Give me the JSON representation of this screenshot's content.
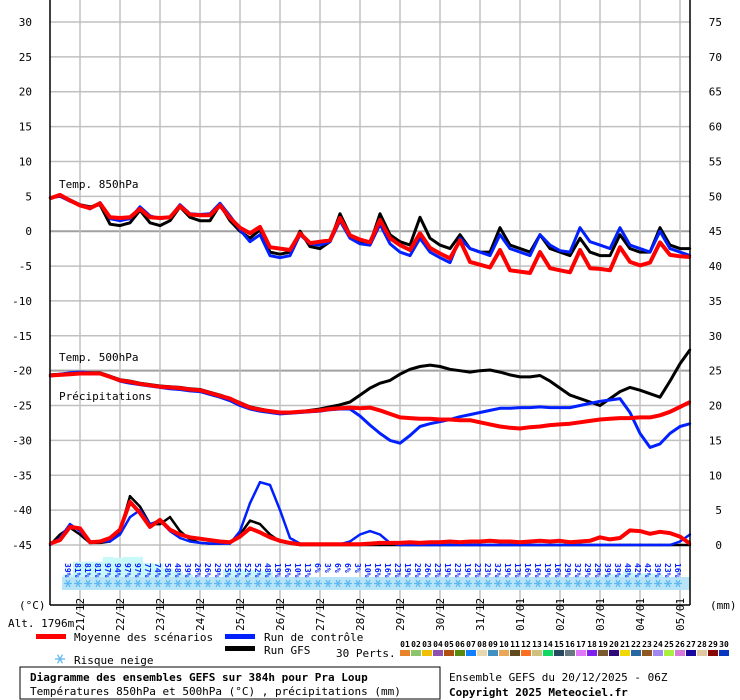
{
  "chart_data": {
    "type": "line",
    "title": "Diagramme des ensembles GEFS sur 384h pour Pra Loup",
    "subtitle": "Températures 850hPa et 500hPa (°C) , précipitations (mm)",
    "run_label": "Ensemble GEFS du 20/12/2025 - 06Z",
    "copyright": "Copyright 2025 Meteociel.fr",
    "altitude": "Alt. 1796m",
    "left_unit": "(°C)",
    "right_unit": "(mm)",
    "left_axis": {
      "range": [
        -45,
        30
      ],
      "ticks": [
        "30",
        "25",
        "20",
        "15",
        "10",
        "5",
        "0",
        "-5",
        "-10",
        "-15",
        "-20",
        "-25",
        "-30",
        "-35",
        "-40",
        "-45"
      ]
    },
    "right_axis": {
      "range": [
        0,
        75
      ],
      "ticks": [
        "75",
        "70",
        "65",
        "60",
        "55",
        "50",
        "45",
        "40",
        "35",
        "30",
        "25",
        "20",
        "15",
        "10",
        "5",
        "0"
      ]
    },
    "x_axis": {
      "start": "20/12/2025 06Z",
      "step_hours": 6,
      "length_hours": 384,
      "tick_labels": [
        "21/12",
        "22/12",
        "23/12",
        "24/12",
        "25/12",
        "26/12",
        "27/12",
        "28/12",
        "29/12",
        "30/12",
        "31/12",
        "01/01",
        "02/01",
        "03/01",
        "04/01",
        "05/01"
      ]
    },
    "grid": true,
    "panel_labels": {
      "t850": "Temp. 850hPa",
      "t500": "Temp. 500hPa",
      "precip": "Précipitations"
    },
    "colors": {
      "mean": "#ff0000",
      "control": "#0020ff",
      "gfs": "#000000",
      "grid": "#c0c0c0",
      "snow_fill": "#c8f8f8",
      "snow_text": "#0020ff",
      "snowflake": "#60b8f0"
    },
    "series": {
      "t850": {
        "mean": [
          4.7,
          5.2,
          4.4,
          3.7,
          3.3,
          4.0,
          2.0,
          1.9,
          2.0,
          3.2,
          2.0,
          1.9,
          2.0,
          3.6,
          2.4,
          2.3,
          2.3,
          3.7,
          1.9,
          0.5,
          -0.3,
          0.6,
          -2.3,
          -2.5,
          -2.7,
          -0.3,
          -1.7,
          -1.5,
          -1.3,
          1.9,
          -0.6,
          -1.2,
          -1.6,
          1.6,
          -1.0,
          -2.0,
          -2.7,
          -0.3,
          -2.4,
          -3.2,
          -3.9,
          -1.3,
          -4.4,
          -4.8,
          -5.2,
          -2.7,
          -5.6,
          -5.8,
          -6.0,
          -3.0,
          -5.3,
          -5.6,
          -5.9,
          -2.7,
          -5.3,
          -5.4,
          -5.6,
          -2.3,
          -4.4,
          -4.9,
          -4.5,
          -1.6,
          -3.4,
          -3.6,
          -3.7
        ],
        "control": [
          4.8,
          5.0,
          4.3,
          3.8,
          3.2,
          4.1,
          1.8,
          1.5,
          1.8,
          3.5,
          2.2,
          1.8,
          2.0,
          3.8,
          2.5,
          2.4,
          2.5,
          4.0,
          2.2,
          0.2,
          -1.5,
          -0.5,
          -3.5,
          -3.8,
          -3.5,
          -0.5,
          -1.8,
          -2.0,
          -1.5,
          1.5,
          -1.0,
          -1.8,
          -2.0,
          1.0,
          -1.8,
          -3.0,
          -3.5,
          -1.0,
          -3.0,
          -3.8,
          -4.5,
          -1.0,
          -2.5,
          -3.0,
          -3.5,
          -0.5,
          -2.5,
          -3.0,
          -3.5,
          -0.5,
          -2.0,
          -2.8,
          -3.0,
          0.5,
          -1.5,
          -2.0,
          -2.5,
          0.5,
          -2.0,
          -2.5,
          -3.0,
          0.0,
          -2.5,
          -3.0,
          -3.5
        ],
        "gfs": [
          4.8,
          5.0,
          4.5,
          3.8,
          3.5,
          3.8,
          1.0,
          0.8,
          1.2,
          3.0,
          1.2,
          0.8,
          1.5,
          3.5,
          2.0,
          1.5,
          1.5,
          3.8,
          1.5,
          0.0,
          -1.0,
          0.2,
          -3.0,
          -3.3,
          -3.0,
          0.0,
          -2.2,
          -2.5,
          -1.5,
          2.5,
          -0.5,
          -1.5,
          -1.8,
          2.5,
          -0.5,
          -1.5,
          -2.0,
          2.0,
          -1.0,
          -2.0,
          -2.5,
          -0.5,
          -2.5,
          -3.0,
          -3.0,
          0.5,
          -2.0,
          -2.5,
          -3.0,
          -0.5,
          -2.5,
          -3.0,
          -3.5,
          -1.0,
          -3.0,
          -3.5,
          -3.5,
          -0.5,
          -2.5,
          -3.0,
          -3.0,
          0.5,
          -2.0,
          -2.5,
          -2.5
        ]
      },
      "t500": {
        "mean": [
          -20.7,
          -20.6,
          -20.5,
          -20.4,
          -20.4,
          -20.4,
          -20.9,
          -21.4,
          -21.6,
          -21.9,
          -22.1,
          -22.3,
          -22.4,
          -22.5,
          -22.7,
          -22.8,
          -23.2,
          -23.6,
          -24.0,
          -24.7,
          -25.3,
          -25.6,
          -25.8,
          -26.0,
          -26.0,
          -25.9,
          -25.8,
          -25.7,
          -25.5,
          -25.4,
          -25.3,
          -25.4,
          -25.3,
          -25.7,
          -26.2,
          -26.7,
          -26.8,
          -26.9,
          -26.9,
          -27.0,
          -27.0,
          -27.1,
          -27.1,
          -27.4,
          -27.7,
          -28.0,
          -28.2,
          -28.3,
          -28.1,
          -28.0,
          -27.8,
          -27.7,
          -27.6,
          -27.4,
          -27.2,
          -27.0,
          -26.9,
          -26.8,
          -26.8,
          -26.7,
          -26.7,
          -26.4,
          -25.9,
          -25.2,
          -24.5
        ],
        "control": [
          -20.8,
          -20.5,
          -20.3,
          -20.2,
          -20.3,
          -20.4,
          -20.9,
          -21.5,
          -21.8,
          -22.0,
          -22.2,
          -22.4,
          -22.6,
          -22.7,
          -22.9,
          -23.0,
          -23.4,
          -23.8,
          -24.3,
          -25.0,
          -25.5,
          -25.8,
          -26.0,
          -26.2,
          -26.1,
          -26.0,
          -25.9,
          -25.8,
          -25.6,
          -25.5,
          -25.5,
          -26.5,
          -27.8,
          -29.0,
          -30.0,
          -30.4,
          -29.3,
          -28.0,
          -27.6,
          -27.3,
          -27.0,
          -26.6,
          -26.3,
          -26.0,
          -25.7,
          -25.4,
          -25.4,
          -25.3,
          -25.3,
          -25.2,
          -25.3,
          -25.3,
          -25.3,
          -25.0,
          -24.7,
          -24.4,
          -24.2,
          -24.0,
          -26.0,
          -29.0,
          -31.0,
          -30.5,
          -29.0,
          -28.0,
          -27.6
        ],
        "gfs": [
          -20.6,
          -20.5,
          -20.4,
          -20.3,
          -20.3,
          -20.3,
          -20.8,
          -21.3,
          -21.5,
          -21.8,
          -22.0,
          -22.2,
          -22.3,
          -22.4,
          -22.6,
          -22.7,
          -23.1,
          -23.5,
          -24.0,
          -24.6,
          -25.2,
          -25.5,
          -25.8,
          -26.0,
          -26.0,
          -25.9,
          -25.7,
          -25.5,
          -25.2,
          -24.9,
          -24.5,
          -23.5,
          -22.5,
          -21.8,
          -21.4,
          -20.5,
          -19.8,
          -19.4,
          -19.2,
          -19.4,
          -19.8,
          -20.0,
          -20.2,
          -20.0,
          -19.9,
          -20.2,
          -20.6,
          -20.9,
          -20.9,
          -20.7,
          -21.5,
          -22.5,
          -23.5,
          -24.0,
          -24.5,
          -25.0,
          -24.0,
          -23.0,
          -22.4,
          -22.8,
          -23.3,
          -23.8,
          -21.5,
          -19.0,
          -17.0
        ]
      },
      "precip_mm": {
        "mean": [
          0.2,
          0.7,
          2.6,
          2.4,
          0.4,
          0.5,
          1.0,
          2.2,
          6.2,
          4.6,
          2.6,
          3.6,
          2.2,
          1.5,
          1.1,
          0.9,
          0.7,
          0.5,
          0.4,
          1.2,
          2.4,
          1.8,
          1.1,
          0.6,
          0.3,
          0.1,
          0.1,
          0.1,
          0.1,
          0.1,
          0.1,
          0.1,
          0.2,
          0.3,
          0.3,
          0.3,
          0.4,
          0.3,
          0.4,
          0.4,
          0.5,
          0.4,
          0.5,
          0.5,
          0.6,
          0.5,
          0.5,
          0.4,
          0.5,
          0.6,
          0.5,
          0.6,
          0.4,
          0.5,
          0.6,
          1.1,
          0.8,
          1.0,
          2.1,
          2.0,
          1.6,
          1.9,
          1.7,
          1.2,
          0.2
        ],
        "control": [
          0,
          1.0,
          3.0,
          2.0,
          0.3,
          0.5,
          0.5,
          1.5,
          4.0,
          5.0,
          3.0,
          3.5,
          2.0,
          1.0,
          0.5,
          0.3,
          0.2,
          0.2,
          0.2,
          2.0,
          6.0,
          9.0,
          8.6,
          5.0,
          1.0,
          0.2,
          0.1,
          0.1,
          0.1,
          0.1,
          0.5,
          1.5,
          2.0,
          1.5,
          0.3,
          0,
          0,
          0,
          0,
          0,
          0,
          0,
          0,
          0,
          0,
          0,
          0,
          0,
          0,
          0,
          0,
          0,
          0,
          0,
          0,
          0,
          0,
          0,
          0,
          0,
          0,
          0,
          0,
          0.5,
          1.5
        ],
        "gfs": [
          0,
          1.5,
          2.5,
          1.5,
          0.3,
          0.3,
          0.5,
          2.0,
          7.0,
          5.5,
          3.0,
          3.0,
          4.0,
          2.0,
          0.8,
          0.3,
          0.2,
          0.2,
          0.3,
          1.5,
          3.5,
          3.0,
          1.5,
          0.5,
          0.2,
          0,
          0,
          0,
          0,
          0,
          0,
          0,
          0,
          0,
          0,
          0,
          0,
          0,
          0,
          0,
          0,
          0,
          0,
          0,
          0,
          0,
          0,
          0,
          0,
          0,
          0,
          0,
          0,
          0,
          0,
          0,
          0,
          0,
          0,
          0,
          0,
          0,
          0,
          0,
          0
        ]
      }
    },
    "snow_risk_pct": [
      "39%",
      "81%",
      "81%",
      "81%",
      "97%",
      "94%",
      "97%",
      "97%",
      "77%",
      "74%",
      "58%",
      "48%",
      "39%",
      "26%",
      "26%",
      "29%",
      "55%",
      "55%",
      "52%",
      "52%",
      "48%",
      "19%",
      "16%",
      "10%",
      "13%",
      "6%",
      "3%",
      "6%",
      "6%",
      "3%",
      "10%",
      "16%",
      "16%",
      "23%",
      "19%",
      "29%",
      "26%",
      "23%",
      "19%",
      "23%",
      "19%",
      "23%",
      "23%",
      "32%",
      "19%",
      "13%",
      "16%",
      "16%",
      "19%",
      "16%",
      "29%",
      "32%",
      "29%",
      "29%",
      "39%",
      "39%",
      "48%",
      "42%",
      "42%",
      "39%",
      "23%",
      "16%"
    ]
  },
  "legend": {
    "mean": "Moyenne des scénarios",
    "control": "Run de contrôle",
    "gfs": "Run GFS",
    "snow": "Risque neige",
    "perts_label": "30 Perts.",
    "perts": [
      {
        "n": "01",
        "c": "#e8832a"
      },
      {
        "n": "02",
        "c": "#8cc46a"
      },
      {
        "n": "03",
        "c": "#f0c000"
      },
      {
        "n": "04",
        "c": "#9050b0"
      },
      {
        "n": "05",
        "c": "#b05010"
      },
      {
        "n": "06",
        "c": "#5a8a10"
      },
      {
        "n": "07",
        "c": "#1080ff"
      },
      {
        "n": "08",
        "c": "#e8d8b0"
      },
      {
        "n": "09",
        "c": "#4090c0"
      },
      {
        "n": "10",
        "c": "#e8a858"
      },
      {
        "n": "11",
        "c": "#604a20"
      },
      {
        "n": "12",
        "c": "#f87020"
      },
      {
        "n": "13",
        "c": "#d0c080"
      },
      {
        "n": "14",
        "c": "#10d860"
      },
      {
        "n": "15",
        "c": "#284860"
      },
      {
        "n": "16",
        "c": "#687880"
      },
      {
        "n": "17",
        "c": "#e078f8"
      },
      {
        "n": "18",
        "c": "#8020f0"
      },
      {
        "n": "19",
        "c": "#7a5a30"
      },
      {
        "n": "20",
        "c": "#300878"
      },
      {
        "n": "21",
        "c": "#f0d800"
      },
      {
        "n": "22",
        "c": "#2868a0"
      },
      {
        "n": "23",
        "c": "#905820"
      },
      {
        "n": "24",
        "c": "#a088f0"
      },
      {
        "n": "25",
        "c": "#a8f040"
      },
      {
        "n": "26",
        "c": "#d878d8"
      },
      {
        "n": "27",
        "c": "#1808a0"
      },
      {
        "n": "28",
        "c": "#e0c8a0"
      },
      {
        "n": "29",
        "c": "#880808"
      },
      {
        "n": "30",
        "c": "#0838c0"
      }
    ]
  }
}
